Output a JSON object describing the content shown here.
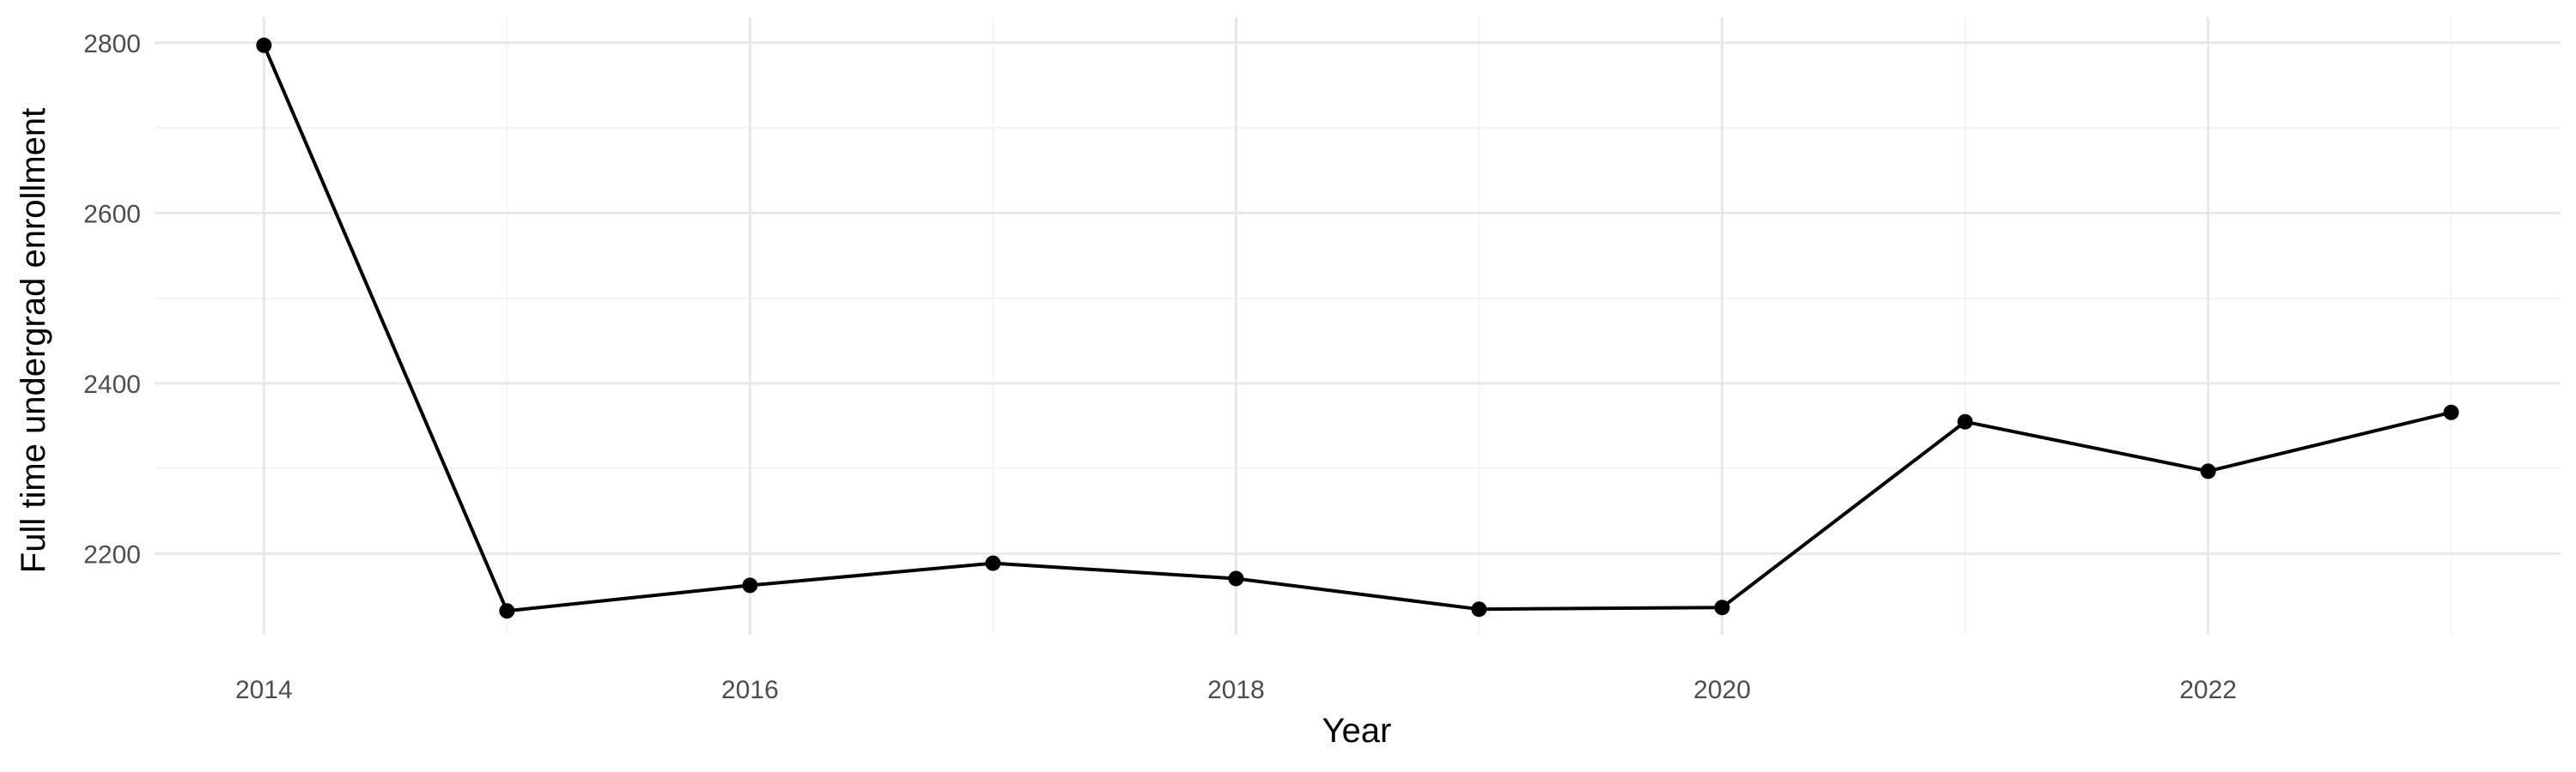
{
  "chart_data": {
    "type": "line",
    "title": "",
    "xlabel": "Year",
    "ylabel": "Full time undergrad enrollment",
    "x": [
      2014,
      2015,
      2016,
      2017,
      2018,
      2019,
      2020,
      2021,
      2022,
      2023
    ],
    "series": [
      {
        "values": [
          2797,
          2133,
          2163,
          2189,
          2171,
          2135,
          2137,
          2355,
          2297,
          2366
        ]
      }
    ],
    "xlim": [
      2013.55,
      2023.45
    ],
    "ylim": [
      2105,
      2830
    ],
    "x_ticks": [
      2014,
      2016,
      2018,
      2020,
      2022
    ],
    "x_tick_labels": [
      "2014",
      "2016",
      "2018",
      "2020",
      "2022"
    ],
    "y_ticks": [
      2200,
      2400,
      2600,
      2800
    ],
    "y_tick_labels": [
      "2200",
      "2400",
      "2600",
      "2800"
    ],
    "grid": true,
    "legend": "none",
    "colors": {
      "line": "#000000",
      "point": "#000000",
      "grid_major": "#e8e8e8",
      "grid_minor": "#f2f2f2",
      "tick_text": "#4d4d4d"
    }
  }
}
